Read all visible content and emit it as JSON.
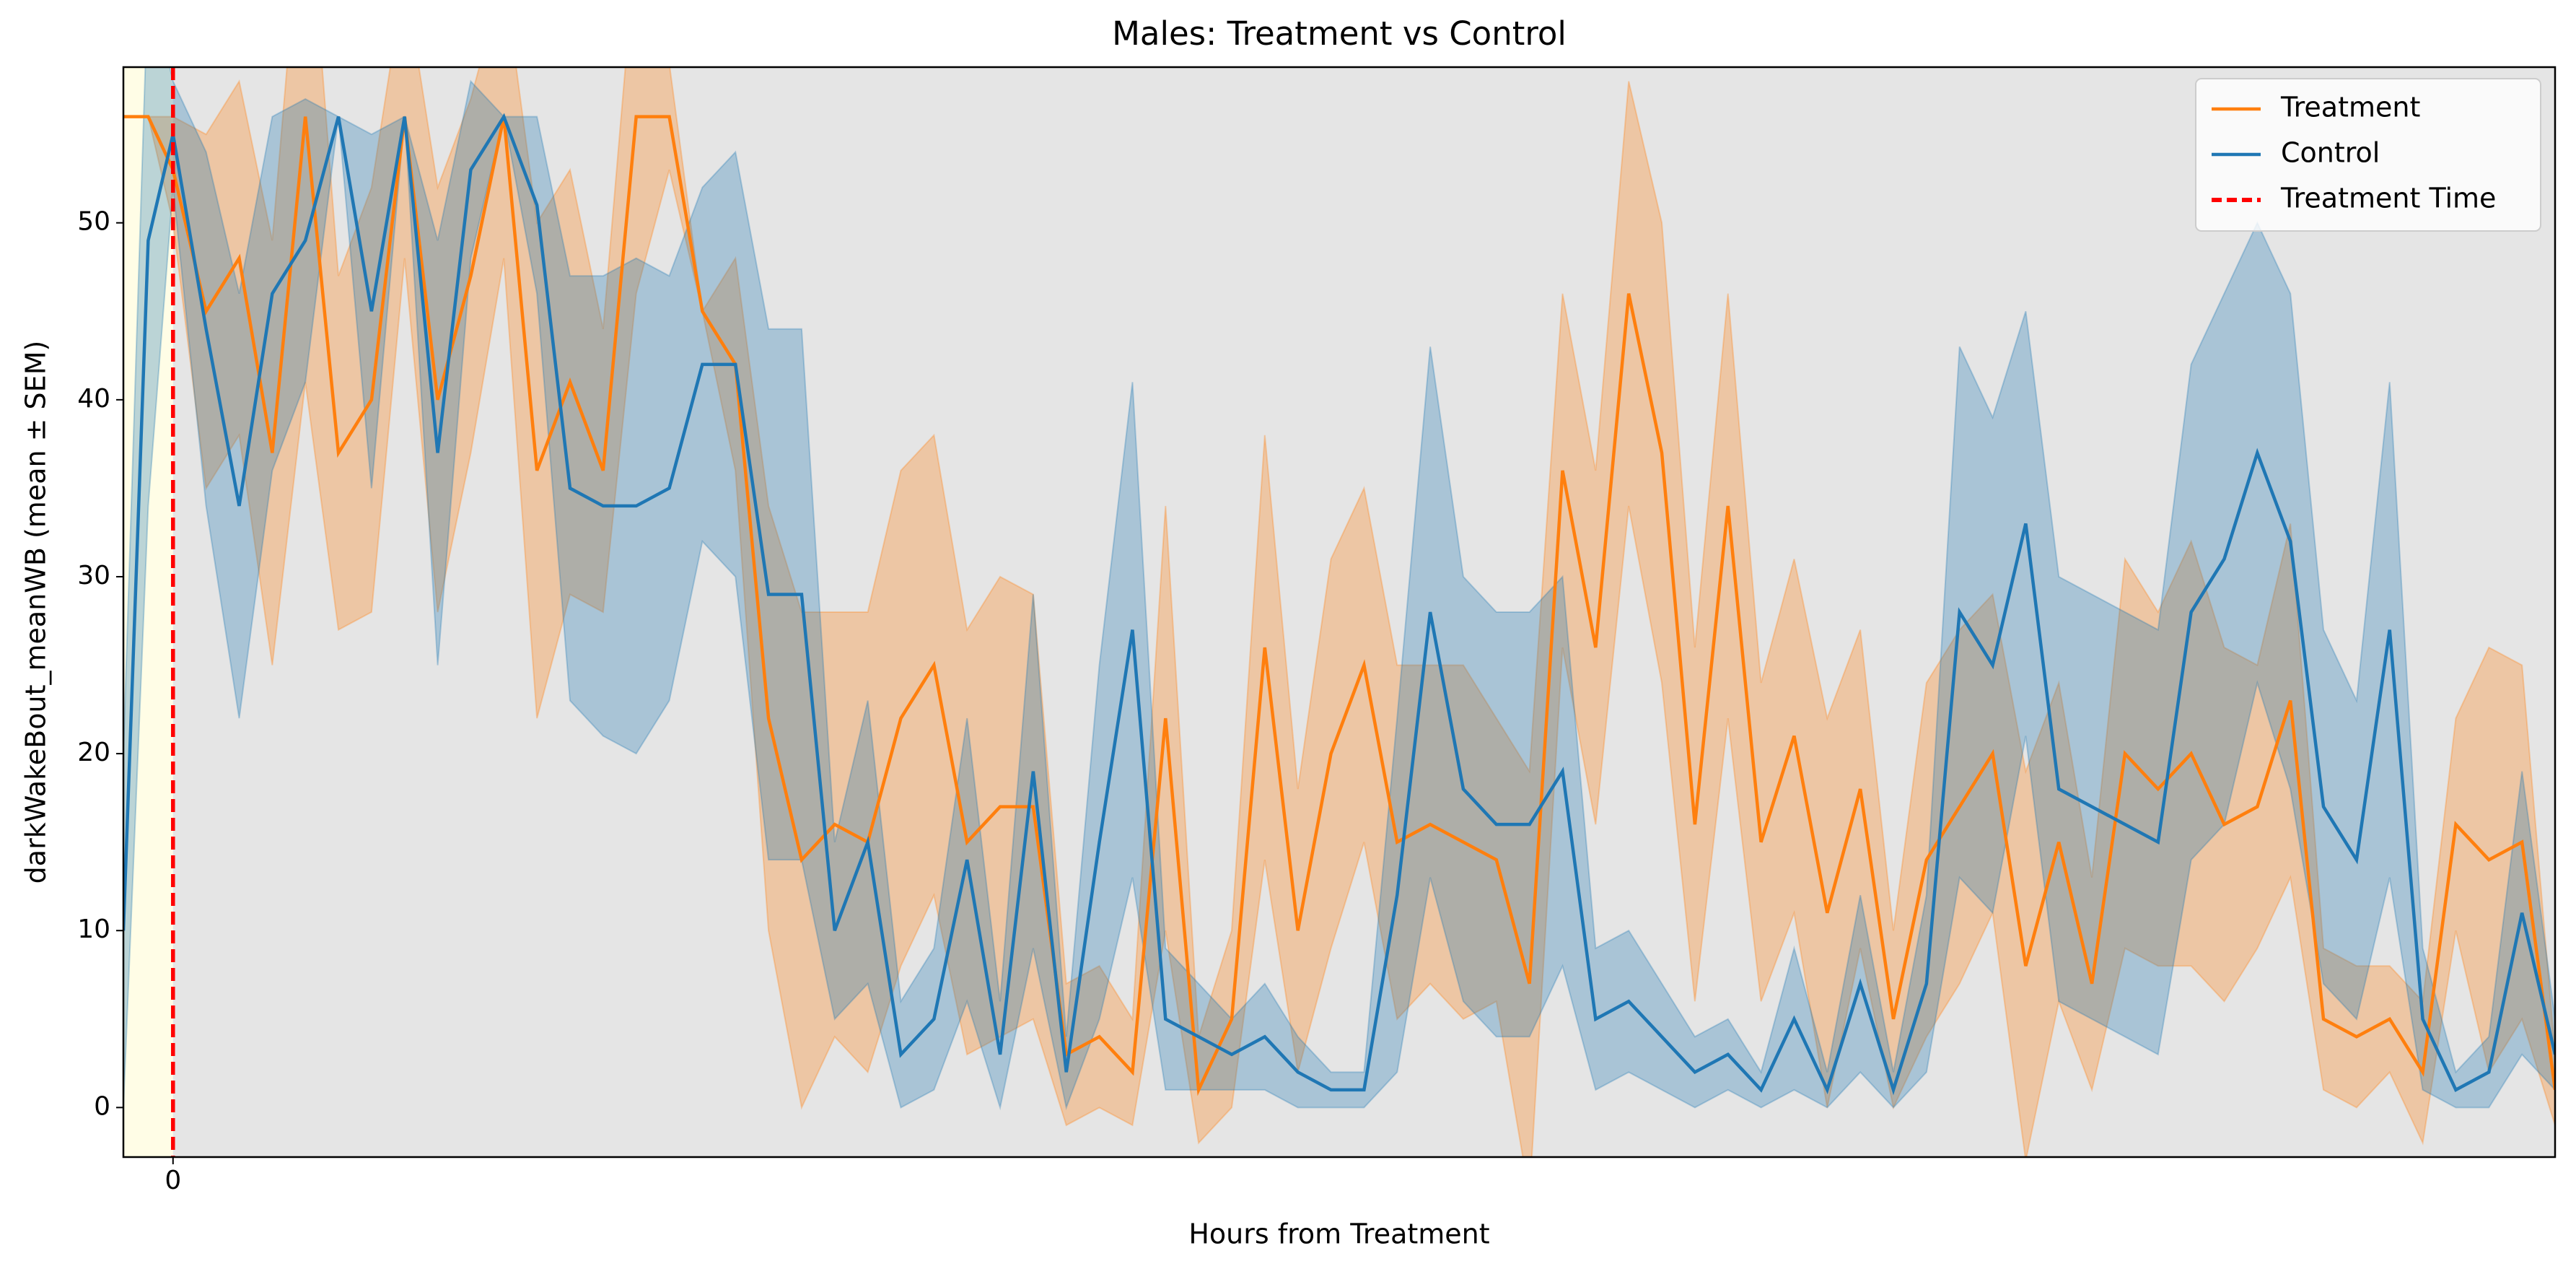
{
  "chart_data": {
    "type": "line",
    "title": "Males: Treatment vs Control",
    "xlabel": "Hours from Treatment",
    "ylabel": "darkWakeBout_meanWB (mean ± SEM)",
    "x": [
      -1.5,
      -0.75,
      0,
      1,
      2,
      3,
      4,
      5,
      6,
      7,
      8,
      9,
      10,
      11,
      12,
      13,
      14,
      15,
      16,
      17,
      18,
      19,
      20,
      21,
      22,
      23,
      24,
      25,
      26,
      27,
      28,
      29,
      30,
      31,
      32,
      33,
      34,
      35,
      36,
      37,
      38,
      39,
      40,
      41,
      42,
      43,
      44,
      45,
      46,
      47,
      48,
      49,
      50,
      51,
      52,
      53,
      54,
      55,
      56,
      57,
      58,
      59,
      60,
      61,
      62,
      63,
      64,
      65,
      66,
      67,
      68,
      69,
      70,
      71,
      72
    ],
    "series": [
      {
        "name": "Treatment",
        "color": "#ff7f0e",
        "values": [
          56,
          56,
          53,
          45,
          48,
          37,
          56,
          37,
          40,
          56,
          40,
          47,
          56,
          36,
          41,
          36,
          56,
          56,
          45,
          42,
          22,
          14,
          16,
          15,
          22,
          25,
          15,
          17,
          17,
          3,
          4,
          2,
          22,
          1,
          5,
          26,
          10,
          20,
          25,
          15,
          16,
          15,
          14,
          7,
          36,
          26,
          46,
          37,
          16,
          34,
          15,
          21,
          11,
          18,
          5,
          14,
          17,
          20,
          8,
          15,
          7,
          20,
          18,
          20,
          16,
          17,
          23,
          5,
          4,
          5,
          2,
          16,
          14,
          15,
          1
        ],
        "sem": [
          0,
          0,
          3,
          10,
          10,
          12,
          15,
          10,
          12,
          8,
          12,
          10,
          8,
          14,
          12,
          8,
          10,
          3,
          0,
          6,
          12,
          14,
          12,
          13,
          14,
          13,
          12,
          13,
          12,
          4,
          4,
          3,
          12,
          3,
          5,
          12,
          8,
          11,
          10,
          10,
          9,
          10,
          8,
          12,
          10,
          10,
          12,
          13,
          10,
          12,
          9,
          10,
          11,
          9,
          5,
          10,
          10,
          9,
          11,
          9,
          6,
          11,
          10,
          12,
          10,
          8,
          10,
          4,
          4,
          3,
          4,
          6,
          12,
          10,
          2
        ]
      },
      {
        "name": "Control",
        "color": "#1f77b4",
        "values": [
          10,
          49,
          55,
          44,
          34,
          46,
          49,
          56,
          45,
          56,
          37,
          53,
          56,
          51,
          35,
          34,
          34,
          35,
          42,
          42,
          29,
          29,
          10,
          15,
          3,
          5,
          14,
          3,
          19,
          2,
          15,
          27,
          5,
          4,
          3,
          4,
          2,
          1,
          1,
          12,
          28,
          18,
          16,
          16,
          19,
          5,
          6,
          4,
          2,
          3,
          1,
          5,
          1,
          7,
          1,
          7,
          28,
          25,
          33,
          18,
          17,
          16,
          15,
          28,
          31,
          37,
          32,
          17,
          14,
          27,
          5,
          1,
          2,
          11,
          3
        ],
        "sem": [
          10,
          15,
          3,
          10,
          12,
          10,
          8,
          0,
          10,
          0,
          12,
          5,
          0,
          5,
          12,
          13,
          14,
          12,
          10,
          12,
          15,
          15,
          5,
          8,
          3,
          4,
          8,
          3,
          10,
          2,
          10,
          14,
          4,
          3,
          2,
          3,
          2,
          1,
          1,
          10,
          15,
          12,
          12,
          12,
          11,
          4,
          4,
          3,
          2,
          2,
          1,
          4,
          1,
          5,
          1,
          5,
          15,
          14,
          12,
          12,
          12,
          12,
          12,
          14,
          15,
          13,
          14,
          10,
          9,
          14,
          4,
          1,
          2,
          8,
          2
        ]
      }
    ],
    "vline": {
      "name": "Treatment Time",
      "x": 0,
      "color": "#ff0000"
    },
    "pre_color": "#fffde6",
    "post_color": "#e5e5e5",
    "xlim": [
      -1.5,
      72
    ],
    "ylim": [
      -2.8,
      58.8
    ],
    "xticks": [
      0
    ],
    "yticks": [
      0,
      10,
      20,
      30,
      40,
      50
    ],
    "legend": "upper right"
  }
}
